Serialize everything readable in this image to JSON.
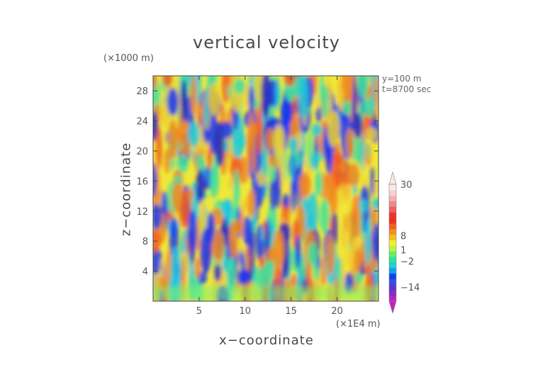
{
  "chart_data": {
    "type": "heatmap",
    "title": "vertical velocity",
    "xlabel": "x−coordinate",
    "ylabel": "z−coordinate",
    "x_unit": "(×1E4 m)",
    "y_unit": "(×1000 m)",
    "annotations": [
      "y=100 m",
      "t=8700 sec"
    ],
    "xlim": [
      0,
      24.5
    ],
    "ylim": [
      0,
      30
    ],
    "x_ticks": [
      5,
      10,
      15,
      20
    ],
    "y_ticks": [
      4,
      8,
      12,
      16,
      20,
      24,
      28
    ],
    "x_tick_labels": [
      "5",
      "10",
      "15",
      "20"
    ],
    "y_tick_labels": [
      "4",
      "8",
      "12",
      "16",
      "20",
      "24",
      "28"
    ],
    "colorbar": {
      "labels": [
        {
          "text": "30",
          "value": 30
        },
        {
          "text": "8",
          "value": 8
        },
        {
          "text": "1",
          "value": 1
        },
        {
          "text": "−2",
          "value": -2
        },
        {
          "text": "−14",
          "value": -14
        }
      ],
      "colors": [
        "#c020c0",
        "#8030c0",
        "#6030d0",
        "#3050e0",
        "#1040f0",
        "#10a0f0",
        "#20d0d0",
        "#30e0a0",
        "#60f060",
        "#c0f040",
        "#f0f030",
        "#f0c020",
        "#f09020",
        "#f06020",
        "#f03020",
        "#f03030",
        "#f06060",
        "#f08888",
        "#f4b0b0",
        "#f8d0d0",
        "#fae8e8"
      ]
    }
  }
}
